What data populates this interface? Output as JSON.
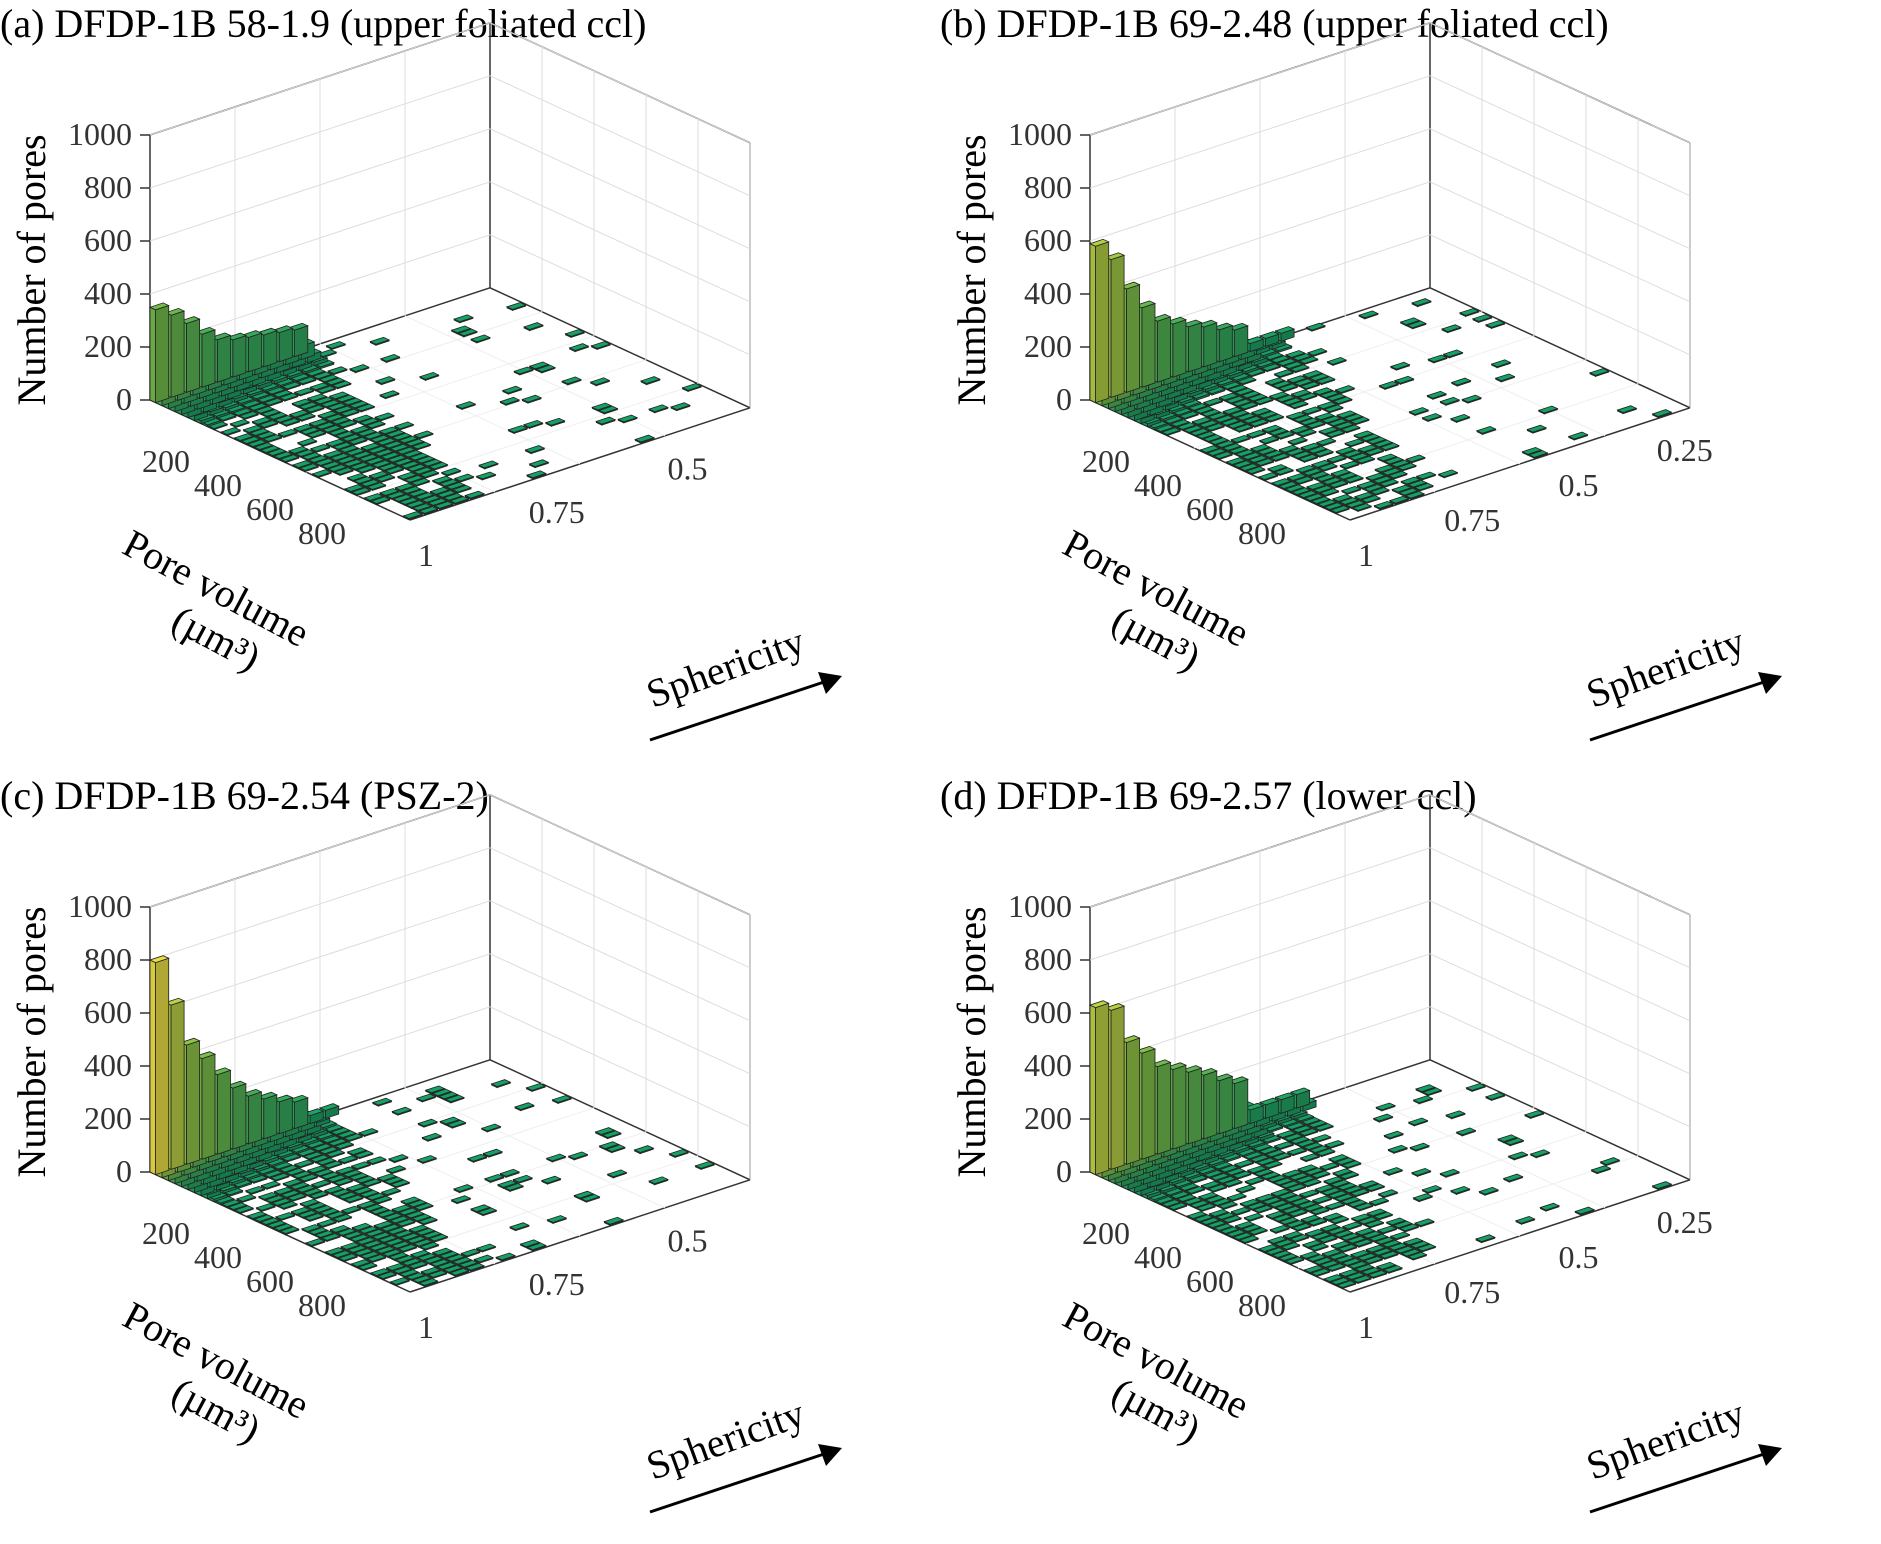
{
  "chart_data": [
    {
      "type": "bar3d",
      "title": "(a) DFDP-1B 58-1.9 (upper foliated ccl)",
      "zlabel": "Number of pores",
      "xlabel": "Pore volume",
      "xlabel_unit": "(µm³)",
      "ylabel": "Sphericity",
      "z_ticks": [
        "0",
        "200",
        "400",
        "600",
        "800",
        "1000"
      ],
      "zlim": [
        0,
        1000
      ],
      "x_ticks": [
        "200",
        "400",
        "600",
        "800"
      ],
      "xlim": [
        0,
        1000
      ],
      "y_ticks": [
        "1",
        "0.75",
        "0.5"
      ],
      "ylim": [
        0.3,
        1
      ],
      "peak_counts": [
        350,
        310,
        260,
        200,
        160,
        140,
        130,
        120,
        110,
        100
      ],
      "sphericity_spread": 0.45,
      "colormap": "summer"
    },
    {
      "type": "bar3d",
      "title": "(b) DFDP-1B 69-2.48 (upper foliated ccl)",
      "zlabel": "Number of pores",
      "xlabel": "Pore volume",
      "xlabel_unit": "(µm³)",
      "ylabel": "Sphericity",
      "z_ticks": [
        "0",
        "200",
        "400",
        "600",
        "800",
        "1000"
      ],
      "zlim": [
        0,
        1000
      ],
      "x_ticks": [
        "200",
        "400",
        "600",
        "800"
      ],
      "xlim": [
        0,
        1000
      ],
      "y_ticks": [
        "1",
        "0.75",
        "0.5",
        "0.25"
      ],
      "ylim": [
        0.15,
        1
      ],
      "peak_counts": [
        590,
        520,
        390,
        300,
        230,
        200,
        170,
        150,
        120,
        100
      ],
      "sphericity_spread": 0.55,
      "colormap": "summer"
    },
    {
      "type": "bar3d",
      "title": "(c) DFDP-1B 69-2.54 (PSZ-2)",
      "zlabel": "Number of pores",
      "xlabel": "Pore volume",
      "xlabel_unit": "(µm³)",
      "ylabel": "Sphericity",
      "z_ticks": [
        "0",
        "200",
        "400",
        "600",
        "800",
        "1000"
      ],
      "zlim": [
        0,
        1000
      ],
      "x_ticks": [
        "200",
        "400",
        "600",
        "800"
      ],
      "xlim": [
        0,
        1000
      ],
      "y_ticks": [
        "1",
        "0.75",
        "0.5"
      ],
      "ylim": [
        0.3,
        1
      ],
      "peak_counts": [
        800,
        620,
        450,
        380,
        300,
        230,
        180,
        150,
        120,
        100
      ],
      "sphericity_spread": 0.5,
      "colormap": "summer"
    },
    {
      "type": "bar3d",
      "title": "(d) DFDP-1B 69-2.57 (lower ccl)",
      "zlabel": "Number of pores",
      "xlabel": "Pore volume",
      "xlabel_unit": "(µm³)",
      "ylabel": "Sphericity",
      "z_ticks": [
        "0",
        "200",
        "400",
        "600",
        "800",
        "1000"
      ],
      "zlim": [
        0,
        1000
      ],
      "x_ticks": [
        "200",
        "400",
        "600",
        "800"
      ],
      "xlim": [
        0,
        1000
      ],
      "y_ticks": [
        "1",
        "0.75",
        "0.5",
        "0.25"
      ],
      "ylim": [
        0.15,
        1
      ],
      "peak_counts": [
        630,
        600,
        460,
        400,
        330,
        300,
        270,
        240,
        200,
        170
      ],
      "sphericity_spread": 0.6,
      "colormap": "summer"
    }
  ]
}
